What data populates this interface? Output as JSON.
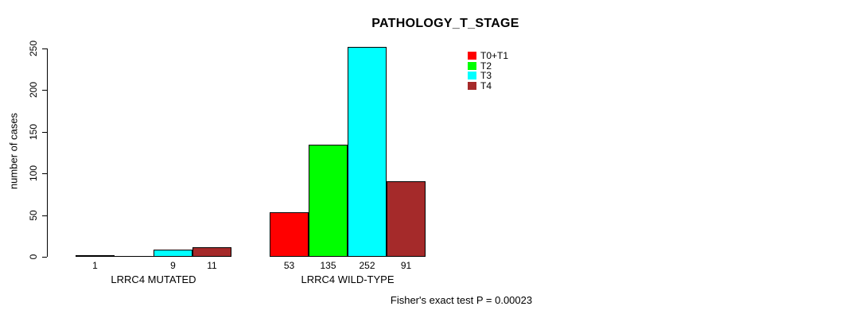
{
  "chart_data": {
    "type": "bar",
    "title": "PATHOLOGY_T_STAGE",
    "ylabel": "number of cases",
    "xlabel": "",
    "ylim": [
      0,
      250
    ],
    "yticks": [
      0,
      50,
      100,
      150,
      200,
      250
    ],
    "categories": [
      "LRRC4 MUTATED",
      "LRRC4 WILD-TYPE"
    ],
    "series": [
      {
        "name": "T0+T1",
        "color": "#ff0000",
        "values": [
          1,
          53
        ]
      },
      {
        "name": "T2",
        "color": "#00ff00",
        "values": [
          0,
          135
        ]
      },
      {
        "name": "T3",
        "color": "#00ffff",
        "values": [
          9,
          252
        ]
      },
      {
        "name": "T4",
        "color": "#a52a2a",
        "values": [
          11,
          91
        ]
      }
    ],
    "bar_value_labels": [
      [
        "1",
        "",
        "9",
        "11"
      ],
      [
        "53",
        "135",
        "252",
        "91"
      ]
    ],
    "legend_position": "top-right",
    "grid": false,
    "annotation": "Fisher's exact test P = 0.00023"
  }
}
